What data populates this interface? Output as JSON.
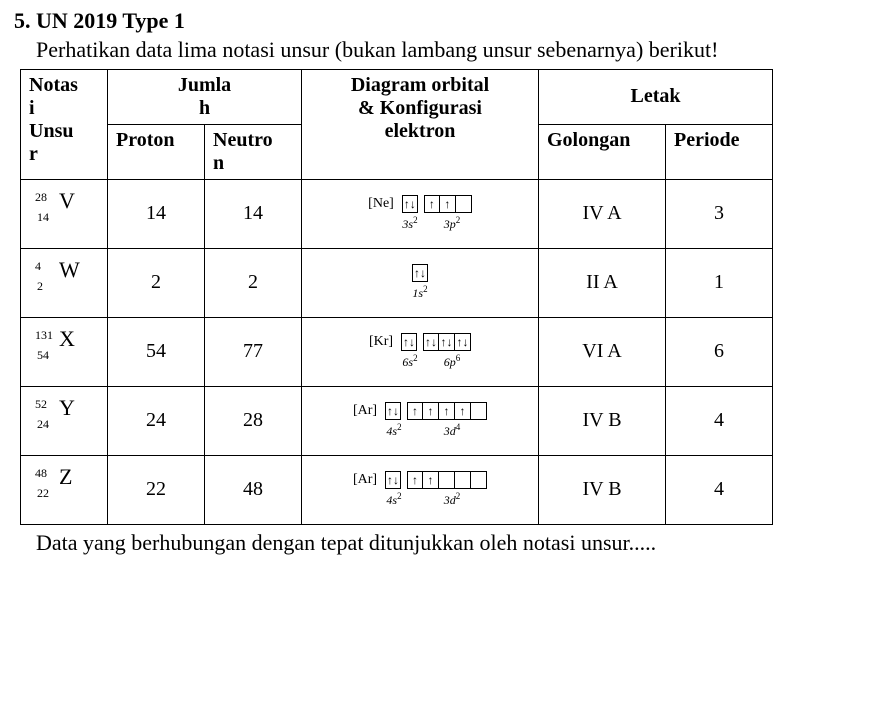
{
  "heading": "5. UN 2019 Type 1",
  "prompt": "Perhatikan data lima notasi unsur (bukan lambang unsur sebenarnya) berikut!",
  "closing": "Data yang berhubungan dengan tepat ditunjukkan oleh notasi unsur.....",
  "colors": {
    "text": "#000000",
    "background": "#ffffff",
    "border": "#000000"
  },
  "table": {
    "headers": {
      "notasi": "Notasi Unsur",
      "jumlah": "Jumlah",
      "proton": "Proton",
      "neutron": "Neutron",
      "diagram": "Diagram orbital & Konfigurasi elektron",
      "letak": "Letak",
      "golongan": "Golongan",
      "periode": "Periode"
    },
    "rows": [
      {
        "mass": "28",
        "atomic": "14",
        "elem": "V",
        "proton": "14",
        "neutron": "14",
        "core": "[Ne]",
        "orbitals": [
          {
            "boxes": [
              "↑↓"
            ],
            "label_base": "3s",
            "label_sup": "2"
          },
          {
            "boxes": [
              "↑",
              "↑",
              ""
            ],
            "label_base": "3p",
            "label_sup": "2"
          }
        ],
        "golongan": "IV A",
        "periode": "3"
      },
      {
        "mass": "4",
        "atomic": "2",
        "elem": "W",
        "proton": "2",
        "neutron": "2",
        "core": "",
        "orbitals": [
          {
            "boxes": [
              "↑↓"
            ],
            "label_base": "1s",
            "label_sup": "2"
          }
        ],
        "golongan": "II A",
        "periode": "1"
      },
      {
        "mass": "131",
        "atomic": "54",
        "elem": "X",
        "proton": "54",
        "neutron": "77",
        "core": "[Kr]",
        "orbitals": [
          {
            "boxes": [
              "↑↓"
            ],
            "label_base": "6s",
            "label_sup": "2"
          },
          {
            "boxes": [
              "↑↓",
              "↑↓",
              "↑↓"
            ],
            "label_base": "6p",
            "label_sup": "6"
          }
        ],
        "golongan": "VI A",
        "periode": "6"
      },
      {
        "mass": "52",
        "atomic": "24",
        "elem": "Y",
        "proton": "24",
        "neutron": "28",
        "core": "[Ar]",
        "orbitals": [
          {
            "boxes": [
              "↑↓"
            ],
            "label_base": "4s",
            "label_sup": "2"
          },
          {
            "boxes": [
              "↑",
              "↑",
              "↑",
              "↑",
              ""
            ],
            "label_base": "3d",
            "label_sup": "4"
          }
        ],
        "golongan": "IV B",
        "periode": "4"
      },
      {
        "mass": "48",
        "atomic": "22",
        "elem": "Z",
        "proton": "22",
        "neutron": "48",
        "core": "[Ar]",
        "orbitals": [
          {
            "boxes": [
              "↑↓"
            ],
            "label_base": "4s",
            "label_sup": "2"
          },
          {
            "boxes": [
              "↑",
              "↑",
              "",
              "",
              ""
            ],
            "label_base": "3d",
            "label_sup": "2"
          }
        ],
        "golongan": "IV B",
        "periode": "4"
      }
    ]
  }
}
